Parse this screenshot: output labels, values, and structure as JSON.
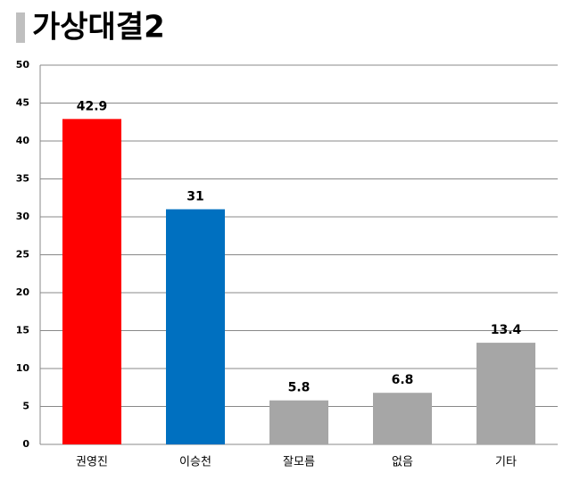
{
  "chart_data": {
    "type": "bar",
    "title": "가상대결2",
    "categories": [
      "권영진",
      "이승천",
      "잘모름",
      "없음",
      "기타"
    ],
    "values": [
      42.9,
      31,
      5.8,
      6.8,
      13.4
    ],
    "colors": [
      "#ff0000",
      "#0070c0",
      "#a6a6a6",
      "#a6a6a6",
      "#a6a6a6"
    ],
    "ylim": [
      0,
      50
    ],
    "yticks": [
      0,
      5,
      10,
      15,
      20,
      25,
      30,
      35,
      40,
      45,
      50
    ],
    "grid": true
  }
}
